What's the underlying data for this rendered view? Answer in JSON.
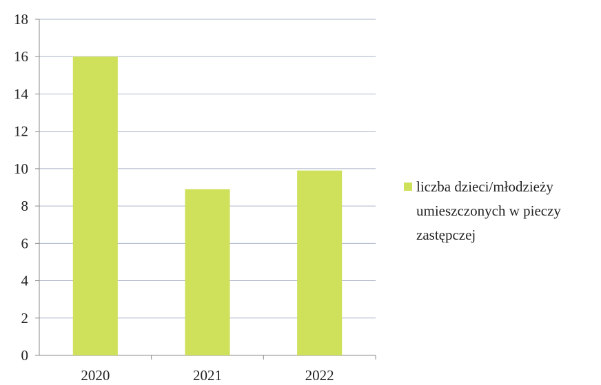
{
  "chart_data": {
    "type": "bar",
    "title": "",
    "xlabel": "",
    "ylabel": "",
    "categories": [
      "2020",
      "2021",
      "2022"
    ],
    "series": [
      {
        "name": "liczba dzieci/młodzieży umieszczonych w pieczy zastępczej",
        "values": [
          16,
          8.9,
          9.9
        ]
      }
    ],
    "ylim": [
      0,
      18
    ],
    "y_ticks": [
      "0",
      "2",
      "4",
      "6",
      "8",
      "10",
      "12",
      "14",
      "16",
      "18"
    ],
    "grid": true,
    "legend_position": "right",
    "legend_lines": [
      "liczba dzieci/młodzieży",
      "umieszczonych w pieczy",
      "zastępczej"
    ],
    "colors": {
      "bar": "#cfe05a",
      "grid": "#aab4c8",
      "axis": "#888888",
      "text": "#222222"
    }
  }
}
